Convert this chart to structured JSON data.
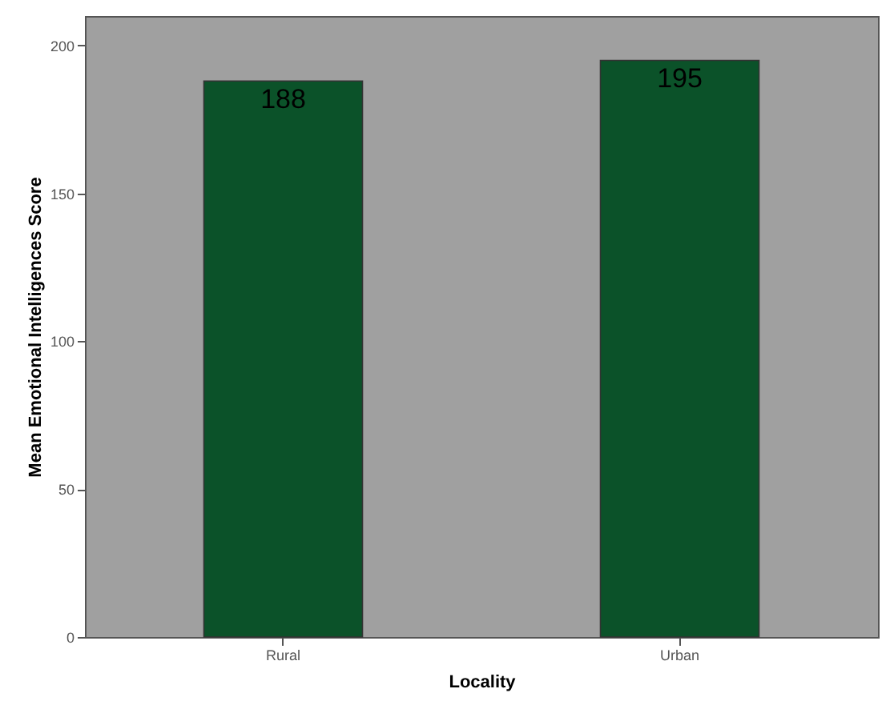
{
  "chart_data": {
    "type": "bar",
    "xlabel": "Locality",
    "ylabel": "Mean Emotional Intelligences Score",
    "categories": [
      "Rural",
      "Urban"
    ],
    "values": [
      188,
      195
    ],
    "color": "#0b5229",
    "ylim": [
      0,
      210
    ],
    "yticks": [
      0,
      50,
      100,
      150,
      200
    ],
    "data_labels": true,
    "grid": false
  }
}
